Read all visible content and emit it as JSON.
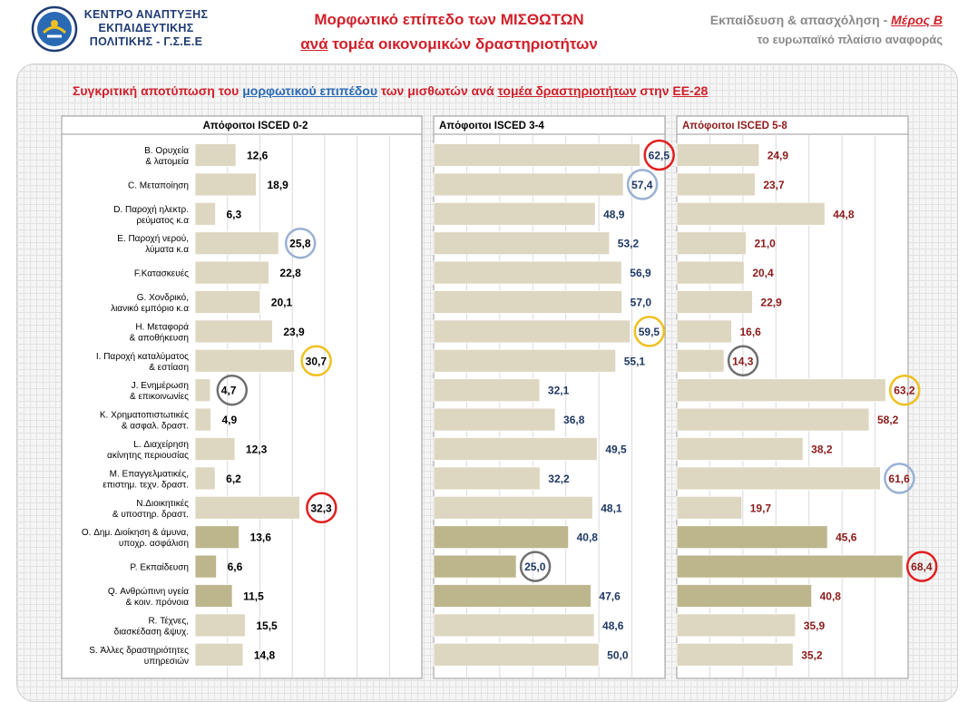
{
  "header": {
    "org_line1": "ΚΕΝΤΡΟ ΑΝΑΠΤΥΞΗΣ",
    "org_line2": "ΕΚΠΑΙΔΕΥΤΙΚΗΣ",
    "org_line3": "ΠΟΛΙΤΙΚΗΣ - Γ.Σ.Ε.Ε",
    "title_line1": "Μορφωτικό επίπεδο των ΜΙΣΘΩΤΩΝ",
    "title_line2a": "ανά",
    "title_line2b": " τομέα οικονομικών δραστηριοτήτων",
    "right_line1a": "Εκπαίδευση & απασχόληση - ",
    "right_line1b": "Μέρος Β",
    "right_line2": "το ευρωπαϊκό πλαίσιο αναφοράς",
    "logo_icon": "kanep-logo-icon"
  },
  "subtitle": {
    "p1": "Συγκριτική αποτύπωση του ",
    "p2": "μορφωτικού επιπέδου",
    "p3": " των μισθωτών ",
    "p4": "ανά ",
    "p5": "τομέα δραστηριοτήτων",
    "p6": " στην ",
    "p7": "ΕΕ-28"
  },
  "colors": {
    "bar_light": "#ddd6c0",
    "bar_dark": "#bdb68d",
    "value_panel1": "#000000",
    "value_panel2": "#1f3864",
    "value_panel3": "#8b1a1a",
    "circle_red": "#e02020",
    "circle_blue": "#9ab0d4",
    "circle_yellow": "#f0c020",
    "circle_gray": "#707070"
  },
  "chart_data": {
    "type": "bar",
    "orientation": "horizontal",
    "xlim": [
      0,
      70
    ],
    "grid": true,
    "categories": [
      [
        "B. Ορυχεία",
        "& λατομεία"
      ],
      [
        "C. Μεταποίηση"
      ],
      [
        "D. Παροχή ηλεκτρ.",
        "ρεύματος κ.α"
      ],
      [
        "E. Παροχή νερού,",
        "λύματα κ.α"
      ],
      [
        "F.Κατασκευές"
      ],
      [
        "G. Χονδρικό,",
        "λιανικό εμπόριο κ.α"
      ],
      [
        "H. Μεταφορά",
        "& αποθήκευση"
      ],
      [
        "I. Παροχή καταλύματος",
        "& εστίαση"
      ],
      [
        "J. Ενημέρωση",
        "& επικοινωνίες"
      ],
      [
        "K. Χρηματοπιστωτικές",
        "& ασφαλ. δραστ."
      ],
      [
        "L. Διαχείρηση",
        "ακίνητης περιουσίας"
      ],
      [
        "M. Επαγγελματικές,",
        "επιστημ. τεχν. δραστ."
      ],
      [
        "N.Διοικητικές",
        "& υποστηρ. δραστ."
      ],
      [
        "O. Δημ. Διοίκηση & άμυνα,",
        "υποχρ. ασφάλιση"
      ],
      [
        "P. Εκπαίδευση"
      ],
      [
        "Q. Ανθρώπινη υγεία",
        "& κοιν. πρόνοια"
      ],
      [
        "R. Τέχνες,",
        "διασκέδαση &ψυχ."
      ],
      [
        "S. Άλλες δραστηριότητες",
        "υπηρεσιών"
      ]
    ],
    "dark_rows": [
      13,
      14,
      15
    ],
    "series": [
      {
        "name": "Απόφοιτοι ISCED 0-2",
        "values": [
          12.6,
          18.9,
          6.3,
          25.8,
          22.8,
          20.1,
          23.9,
          30.7,
          4.7,
          4.9,
          12.3,
          6.2,
          32.3,
          13.6,
          6.6,
          11.5,
          15.5,
          14.8
        ],
        "labels": [
          "12,6",
          "18,9",
          "6,3",
          "25,8",
          "22,8",
          "20,1",
          "23,9",
          "30,7",
          "4,7",
          "4,9",
          "12,3",
          "6,2",
          "32,3",
          "13,6",
          "6,6",
          "11,5",
          "15,5",
          "14,8"
        ],
        "circles": [
          {
            "row": 3,
            "color": "blue"
          },
          {
            "row": 7,
            "color": "yellow"
          },
          {
            "row": 8,
            "color": "gray"
          },
          {
            "row": 12,
            "color": "red"
          }
        ]
      },
      {
        "name": "Απόφοιτοι ISCED 3-4",
        "values": [
          62.5,
          57.4,
          48.9,
          53.2,
          56.9,
          57.0,
          59.5,
          55.1,
          32.1,
          36.8,
          49.5,
          32.2,
          48.1,
          40.8,
          25.0,
          47.6,
          48.6,
          50.0
        ],
        "labels": [
          "62,5",
          "57,4",
          "48,9",
          "53,2",
          "56,9",
          "57,0",
          "59,5",
          "55,1",
          "32,1",
          "36,8",
          "49,5",
          "32,2",
          "48,1",
          "40,8",
          "25,0",
          "47,6",
          "48,6",
          "50,0"
        ],
        "circles": [
          {
            "row": 0,
            "color": "red"
          },
          {
            "row": 1,
            "color": "blue"
          },
          {
            "row": 6,
            "color": "yellow"
          },
          {
            "row": 14,
            "color": "gray"
          }
        ]
      },
      {
        "name": "Απόφοιτοι ISCED 5-8",
        "values": [
          24.9,
          23.7,
          44.8,
          21.0,
          20.4,
          22.9,
          16.6,
          14.3,
          63.2,
          58.2,
          38.2,
          61.6,
          19.7,
          45.6,
          68.4,
          40.8,
          35.9,
          35.2
        ],
        "labels": [
          "24,9",
          "23,7",
          "44,8",
          "21,0",
          "20,4",
          "22,9",
          "16,6",
          "14,3",
          "63,2",
          "58,2",
          "38,2",
          "61,6",
          "19,7",
          "45,6",
          "68,4",
          "40,8",
          "35,9",
          "35,2"
        ],
        "circles": [
          {
            "row": 7,
            "color": "gray"
          },
          {
            "row": 8,
            "color": "yellow"
          },
          {
            "row": 11,
            "color": "blue"
          },
          {
            "row": 14,
            "color": "red"
          }
        ]
      }
    ]
  }
}
